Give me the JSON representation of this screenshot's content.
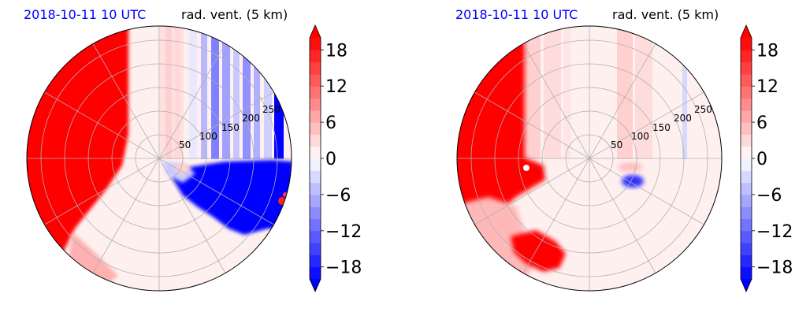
{
  "figure": {
    "panels": [
      {
        "id": "left",
        "date_label": "2018-10-11 10 UTC",
        "title": "rad. vent. (5 km)"
      },
      {
        "id": "right",
        "date_label": "2018-10-11 10 UTC",
        "title": "rad. vent. (5 km)"
      }
    ],
    "colors": {
      "date_label": "#0000ff",
      "positive": "#ff0000",
      "negative": "#0000ff",
      "neutral": "#fff0f0",
      "grid": "#b0b0b0"
    }
  },
  "chart_data": [
    {
      "type": "heatmap",
      "projection": "polar",
      "title": "rad. vent. (5 km)",
      "date_label": "2018-10-11 10 UTC",
      "radial_ticks": [
        "50",
        "100",
        "150",
        "200",
        "250"
      ],
      "radial_values": [
        50,
        100,
        150,
        200,
        250
      ],
      "r_max": 280,
      "colorbar": {
        "ticks": [
          "18",
          "12",
          "6",
          "0",
          "−6",
          "−12",
          "−18"
        ],
        "tick_values": [
          18,
          12,
          6,
          0,
          -6,
          -12,
          -18
        ],
        "range": [
          -20,
          20
        ],
        "extend": "both",
        "cmap": "bwr"
      }
    },
    {
      "type": "heatmap",
      "projection": "polar",
      "title": "rad. vent. (5 km)",
      "date_label": "2018-10-11 10 UTC",
      "radial_ticks": [
        "50",
        "100",
        "150",
        "200",
        "250"
      ],
      "radial_values": [
        50,
        100,
        150,
        200,
        250
      ],
      "r_max": 280,
      "colorbar": {
        "ticks": [
          "18",
          "12",
          "6",
          "0",
          "−6",
          "−12",
          "−18"
        ],
        "tick_values": [
          18,
          12,
          6,
          0,
          -6,
          -12,
          -18
        ],
        "range": [
          -20,
          20
        ],
        "extend": "both",
        "cmap": "bwr"
      }
    }
  ]
}
